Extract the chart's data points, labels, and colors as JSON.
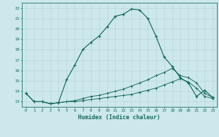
{
  "xlabel": "Humidex (Indice chaleur)",
  "background_color": "#cce8ec",
  "grid_color": "#b8d4d8",
  "line_color": "#1a6b5a",
  "xlim": [
    -0.5,
    23.5
  ],
  "ylim": [
    12.5,
    22.5
  ],
  "xticks": [
    0,
    1,
    2,
    3,
    4,
    5,
    6,
    7,
    8,
    9,
    10,
    11,
    12,
    13,
    14,
    15,
    16,
    17,
    18,
    19,
    20,
    21,
    22,
    23
  ],
  "yticks": [
    13,
    14,
    15,
    16,
    17,
    18,
    19,
    20,
    21,
    22
  ],
  "line1_x": [
    0,
    1,
    2,
    3,
    4,
    5,
    6,
    7,
    8,
    9,
    10,
    11,
    12,
    13,
    14,
    15,
    16,
    17,
    18,
    19,
    20,
    21,
    22,
    23
  ],
  "line1_y": [
    13.8,
    13.0,
    13.0,
    12.8,
    12.9,
    15.1,
    16.5,
    18.0,
    18.7,
    19.3,
    20.2,
    21.2,
    21.4,
    21.9,
    21.8,
    21.0,
    19.3,
    17.3,
    16.4,
    15.3,
    14.8,
    13.5,
    14.1,
    13.4
  ],
  "line2_x": [
    0,
    1,
    2,
    3,
    4,
    5,
    6,
    7,
    8,
    9,
    10,
    11,
    12,
    13,
    14,
    15,
    16,
    17,
    18,
    19,
    20,
    21,
    22,
    23
  ],
  "line2_y": [
    13.8,
    13.0,
    13.0,
    12.8,
    12.9,
    13.0,
    13.1,
    13.3,
    13.5,
    13.6,
    13.8,
    14.0,
    14.2,
    14.5,
    14.8,
    15.1,
    15.5,
    15.8,
    16.2,
    15.5,
    15.3,
    14.8,
    13.8,
    13.4
  ],
  "line3_x": [
    0,
    1,
    2,
    3,
    4,
    5,
    6,
    7,
    8,
    9,
    10,
    11,
    12,
    13,
    14,
    15,
    16,
    17,
    18,
    19,
    20,
    21,
    22,
    23
  ],
  "line3_y": [
    13.8,
    13.0,
    13.0,
    12.8,
    12.9,
    13.0,
    13.0,
    13.1,
    13.2,
    13.3,
    13.4,
    13.5,
    13.6,
    13.7,
    13.9,
    14.1,
    14.3,
    14.6,
    14.9,
    15.2,
    14.9,
    14.3,
    13.5,
    13.3
  ]
}
